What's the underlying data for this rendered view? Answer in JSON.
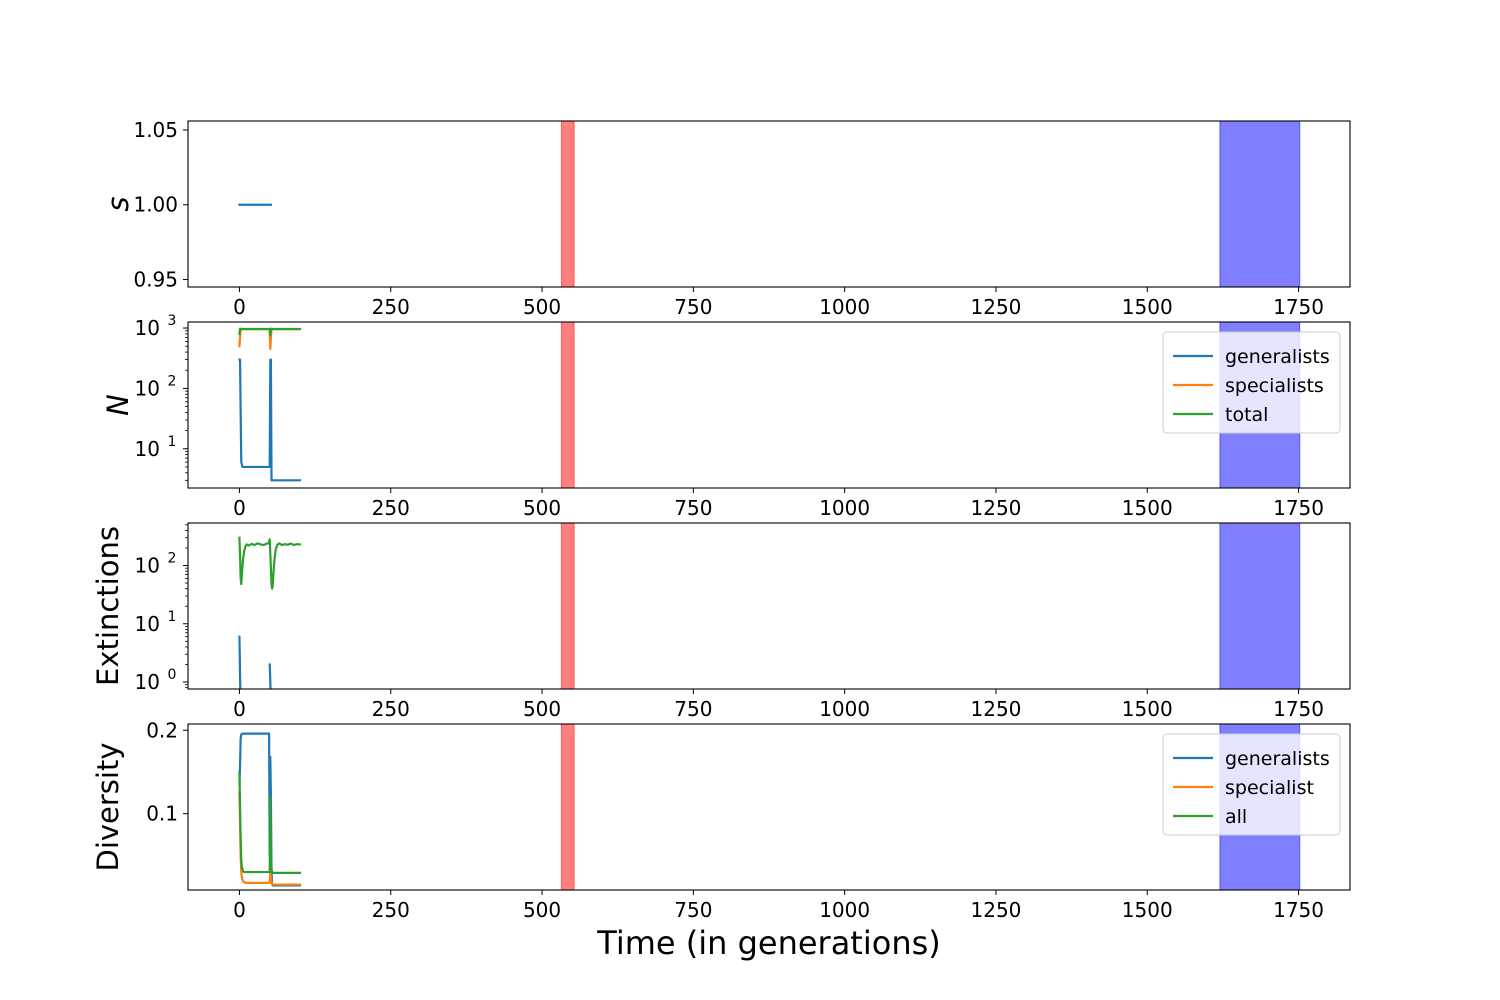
{
  "colors": {
    "generalists": "#1f77b4",
    "specialists": "#ff7f0e",
    "total": "#2ca02c",
    "red_span": "#ff0000",
    "blue_span": "#0000ff"
  },
  "chart_data": {
    "type": "line",
    "shared_x": {
      "label": "Time (in generations)",
      "xlim": [
        -85,
        1835
      ],
      "ticks": [
        0,
        250,
        500,
        750,
        1000,
        1250,
        1500,
        1750
      ],
      "tick_labels": [
        "0",
        "250",
        "500",
        "750",
        "1000",
        "1250",
        "1500",
        "1750"
      ]
    },
    "highlight_spans": [
      {
        "name": "red-span",
        "x0": 532,
        "x1": 553,
        "color": "#ff0000",
        "alpha": 0.5
      },
      {
        "name": "blue-span",
        "x0": 1620,
        "x1": 1752,
        "color": "#0000ff",
        "alpha": 0.5
      }
    ],
    "panels": [
      {
        "name": "s-panel",
        "ylabel": "s",
        "yscale": "linear",
        "ylim": [
          0.945,
          1.056
        ],
        "yticks": [
          0.95,
          1.0,
          1.05
        ],
        "ytick_labels": [
          "0.95",
          "1.00",
          "1.05"
        ],
        "series": [
          {
            "name": "s",
            "color": "#1f77b4",
            "x": [
              0,
              52
            ],
            "y": [
              1.0,
              1.0
            ]
          }
        ]
      },
      {
        "name": "n-panel",
        "ylabel": "N",
        "yscale": "log",
        "ylim_log10": [
          0.35,
          3.1
        ],
        "yticks_log10": [
          1,
          2,
          3
        ],
        "ytick_labels": [
          "10",
          "10",
          "10"
        ],
        "ytick_exponents": [
          "1",
          "2",
          "3"
        ],
        "legend": {
          "position": "upper right",
          "entries": [
            "generalists",
            "specialists",
            "total"
          ]
        },
        "series": [
          {
            "name": "generalists",
            "color": "#1f77b4",
            "x": [
              0,
              1,
              2,
              3,
              5,
              10,
              20,
              30,
              40,
              50,
              51,
              52,
              53,
              55,
              60,
              80,
              100
            ],
            "y": [
              300,
              300,
              40,
              6,
              5,
              5,
              5,
              5,
              5,
              5,
              300,
              300,
              3,
              3,
              3,
              3,
              3
            ]
          },
          {
            "name": "specialists",
            "color": "#ff7f0e",
            "x": [
              0,
              1,
              2,
              3,
              10,
              20,
              30,
              40,
              50,
              51,
              52,
              53,
              60,
              80,
              100
            ],
            "y": [
              500,
              700,
              950,
              960,
              960,
              960,
              960,
              960,
              960,
              450,
              700,
              960,
              960,
              960,
              960
            ]
          },
          {
            "name": "total",
            "color": "#2ca02c",
            "x": [
              0,
              1,
              2,
              10,
              20,
              30,
              40,
              50,
              51,
              52,
              53,
              60,
              80,
              100
            ],
            "y": [
              800,
              980,
              965,
              965,
              965,
              965,
              965,
              965,
              760,
              980,
              963,
              963,
              963,
              963
            ]
          }
        ]
      },
      {
        "name": "extinctions-panel",
        "ylabel": "Extinctions",
        "yscale": "log",
        "ylim_log10": [
          -0.12,
          2.73
        ],
        "yticks_log10": [
          0,
          1,
          2
        ],
        "ytick_labels": [
          "10",
          "10",
          "10"
        ],
        "ytick_exponents": [
          "0",
          "1",
          "2"
        ],
        "series": [
          {
            "name": "generalists",
            "color": "#1f77b4",
            "x": [
              0,
              0.5,
              1,
              1.5
            ],
            "y": [
              6,
              3,
              1.2,
              0.7
            ]
          },
          {
            "name": "generalists-2",
            "color": "#1f77b4",
            "x": [
              50,
              50.5,
              51,
              51.5
            ],
            "y": [
              2,
              1.5,
              1,
              0.7
            ]
          },
          {
            "name": "total",
            "color": "#2ca02c",
            "x": [
              0,
              1,
              2,
              3,
              4,
              6,
              8,
              10,
              12,
              15,
              20,
              25,
              30,
              35,
              40,
              45,
              48,
              50,
              51,
              52,
              53,
              54,
              55,
              56,
              58,
              60,
              63,
              66,
              70,
              75,
              80,
              85,
              90,
              95,
              100
            ],
            "y": [
              300,
              150,
              60,
              48,
              70,
              130,
              180,
              215,
              230,
              220,
              235,
              225,
              240,
              230,
              225,
              238,
              240,
              280,
              160,
              90,
              48,
              40,
              45,
              70,
              130,
              190,
              230,
              240,
              225,
              232,
              228,
              238,
              225,
              233,
              230
            ]
          }
        ]
      },
      {
        "name": "diversity-panel",
        "ylabel": "Diversity",
        "yscale": "linear",
        "ylim": [
          0.0085,
          0.2075
        ],
        "yticks": [
          0.1,
          0.2
        ],
        "ytick_labels": [
          "0.1",
          "0.2"
        ],
        "legend": {
          "position": "upper right",
          "entries": [
            "generalists",
            "specialist",
            "all"
          ]
        },
        "series": [
          {
            "name": "generalists",
            "color": "#1f77b4",
            "x": [
              0,
              1,
              2,
              3,
              5,
              10,
              20,
              30,
              40,
              49,
              50,
              51,
              52,
              53,
              54,
              55,
              60,
              80,
              100
            ],
            "y": [
              0.135,
              0.158,
              0.19,
              0.195,
              0.196,
              0.196,
              0.196,
              0.196,
              0.196,
              0.196,
              0.05,
              0.168,
              0.12,
              0.03,
              0.016,
              0.014,
              0.014,
              0.014,
              0.014
            ]
          },
          {
            "name": "specialist",
            "color": "#ff7f0e",
            "x": [
              0,
              1,
              2,
              3,
              4,
              5,
              6,
              8,
              10,
              20,
              30,
              40,
              50,
              51,
              52,
              53,
              54,
              56,
              60,
              80,
              100
            ],
            "y": [
              0.125,
              0.09,
              0.05,
              0.03,
              0.024,
              0.021,
              0.019,
              0.018,
              0.017,
              0.017,
              0.017,
              0.017,
              0.017,
              0.028,
              0.025,
              0.018,
              0.016,
              0.015,
              0.015,
              0.015,
              0.015
            ]
          },
          {
            "name": "all",
            "color": "#2ca02c",
            "x": [
              0,
              1,
              2,
              3,
              4,
              5,
              6,
              8,
              10,
              20,
              30,
              40,
              50,
              51,
              52,
              53,
              54,
              56,
              60,
              80,
              100
            ],
            "y": [
              0.15,
              0.11,
              0.07,
              0.045,
              0.036,
              0.033,
              0.031,
              0.03,
              0.03,
              0.03,
              0.03,
              0.03,
              0.03,
              0.12,
              0.06,
              0.034,
              0.03,
              0.029,
              0.029,
              0.029,
              0.029
            ]
          }
        ]
      }
    ]
  }
}
